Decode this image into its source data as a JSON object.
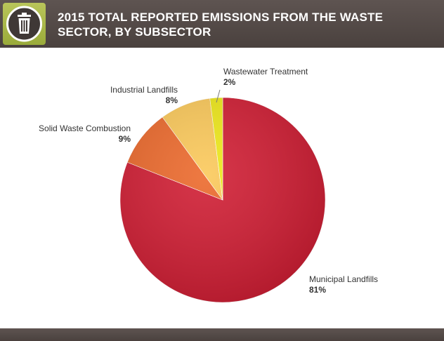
{
  "header": {
    "title_line1": "2015 TOTAL REPORTED EMISSIONS FROM THE WASTE",
    "title_line2": "SECTOR, BY SUBSECTOR",
    "icon": "trash-can-icon"
  },
  "colors": {
    "header_bg": "#564c49",
    "badge_bg": "#a9b84a"
  },
  "chart_data": {
    "type": "pie",
    "title": "2015 TOTAL REPORTED EMISSIONS FROM THE WASTE SECTOR, BY SUBSECTOR",
    "slices": [
      {
        "label": "Municipal Landfills",
        "value_label": "81%",
        "value": 81,
        "color": "#d11f35"
      },
      {
        "label": "Solid Waste Combustion",
        "value_label": "9%",
        "value": 9,
        "color": "#ec6a2d"
      },
      {
        "label": "Industrial Landfills",
        "value_label": "8%",
        "value": 8,
        "color": "#fbc95b"
      },
      {
        "label": "Wastewater Treatment",
        "value_label": "2%",
        "value": 2,
        "color": "#eee81b"
      }
    ]
  }
}
